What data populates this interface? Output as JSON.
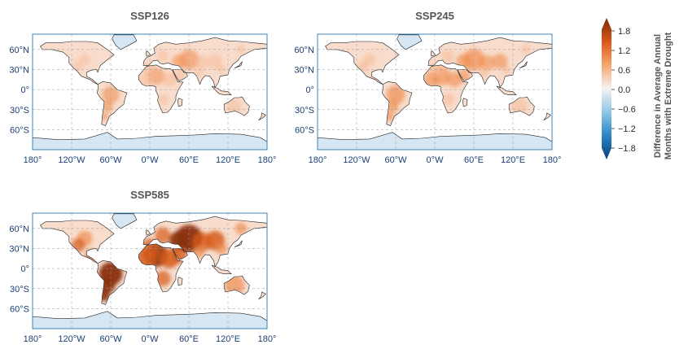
{
  "chart_data": {
    "type": "heatmap",
    "panels": [
      {
        "title": "SSP126",
        "intensity": 0.35
      },
      {
        "title": "SSP245",
        "intensity": 0.5
      },
      {
        "title": "SSP585",
        "intensity": 1.0
      }
    ],
    "x_ticks": [
      "180°",
      "120°W",
      "60°W",
      "0°W",
      "60°E",
      "120°E",
      "180°"
    ],
    "y_ticks": [
      "60°N",
      "30°N",
      "0°",
      "30°S",
      "60°S"
    ],
    "colorbar": {
      "label_line1": "Difference in Average Annual",
      "label_line2": "Months with Extreme Drought",
      "ticks": [
        "1.8",
        "1.2",
        "0.6",
        "0.0",
        "−0.6",
        "−1.2",
        "−1.8"
      ],
      "range": [
        -1.8,
        1.8
      ],
      "cmap": "blue-white-orange"
    },
    "grid": true
  }
}
